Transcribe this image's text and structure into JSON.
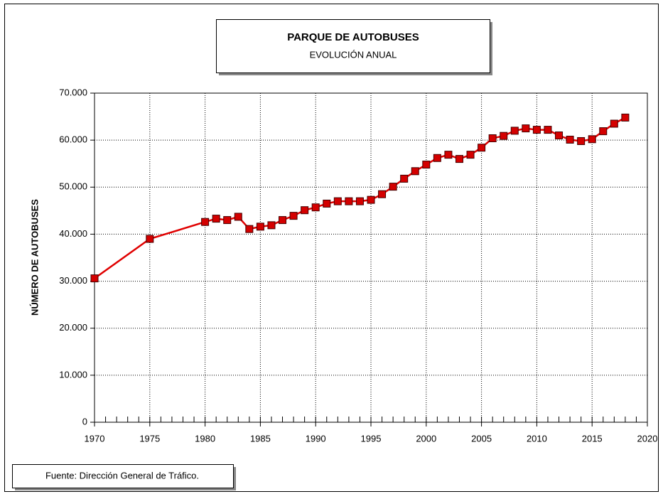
{
  "chart_data": {
    "type": "line",
    "title": "PARQUE DE AUTOBUSES",
    "subtitle": "EVOLUCIÓN ANUAL",
    "y_label": "NÚMERO DE AUTOBUSES",
    "source": "Fuente: Dirección General de Tráfico.",
    "x": [
      1970,
      1975,
      1980,
      1981,
      1982,
      1983,
      1984,
      1985,
      1986,
      1987,
      1988,
      1989,
      1990,
      1991,
      1992,
      1993,
      1994,
      1995,
      1996,
      1997,
      1998,
      1999,
      2000,
      2001,
      2002,
      2003,
      2004,
      2005,
      2006,
      2007,
      2008,
      2009,
      2010,
      2011,
      2012,
      2013,
      2014,
      2015,
      2016,
      2017,
      2018
    ],
    "series": [
      {
        "name": "Autobuses",
        "color": "#e00000",
        "marker_color": "#d40000",
        "values": [
          30600,
          39000,
          42600,
          43300,
          43000,
          43700,
          41100,
          41600,
          41900,
          43000,
          43900,
          45100,
          45700,
          46500,
          47000,
          47000,
          47000,
          47300,
          48500,
          50100,
          51800,
          53400,
          54800,
          56200,
          56900,
          56000,
          56900,
          58400,
          60400,
          60900,
          62000,
          62500,
          62200,
          62200,
          61000,
          60100,
          59800,
          60200,
          61900,
          63500,
          64800
        ]
      }
    ],
    "xlim": [
      1970,
      2020
    ],
    "xticks": [
      1970,
      1975,
      1980,
      1985,
      1990,
      1995,
      2000,
      2005,
      2010,
      2015,
      2020
    ],
    "ylim": [
      0,
      70000
    ],
    "yticks": [
      0,
      {
        "value": 10000,
        "label": "10.000"
      },
      {
        "value": 20000,
        "label": "20.000"
      },
      {
        "value": 30000,
        "label": "30.000"
      },
      {
        "value": 40000,
        "label": "40.000"
      },
      {
        "value": 50000,
        "label": "50.000"
      },
      {
        "value": 60000,
        "label": "60.000"
      },
      {
        "value": 70000,
        "label": "70.000"
      }
    ],
    "grid": true
  }
}
